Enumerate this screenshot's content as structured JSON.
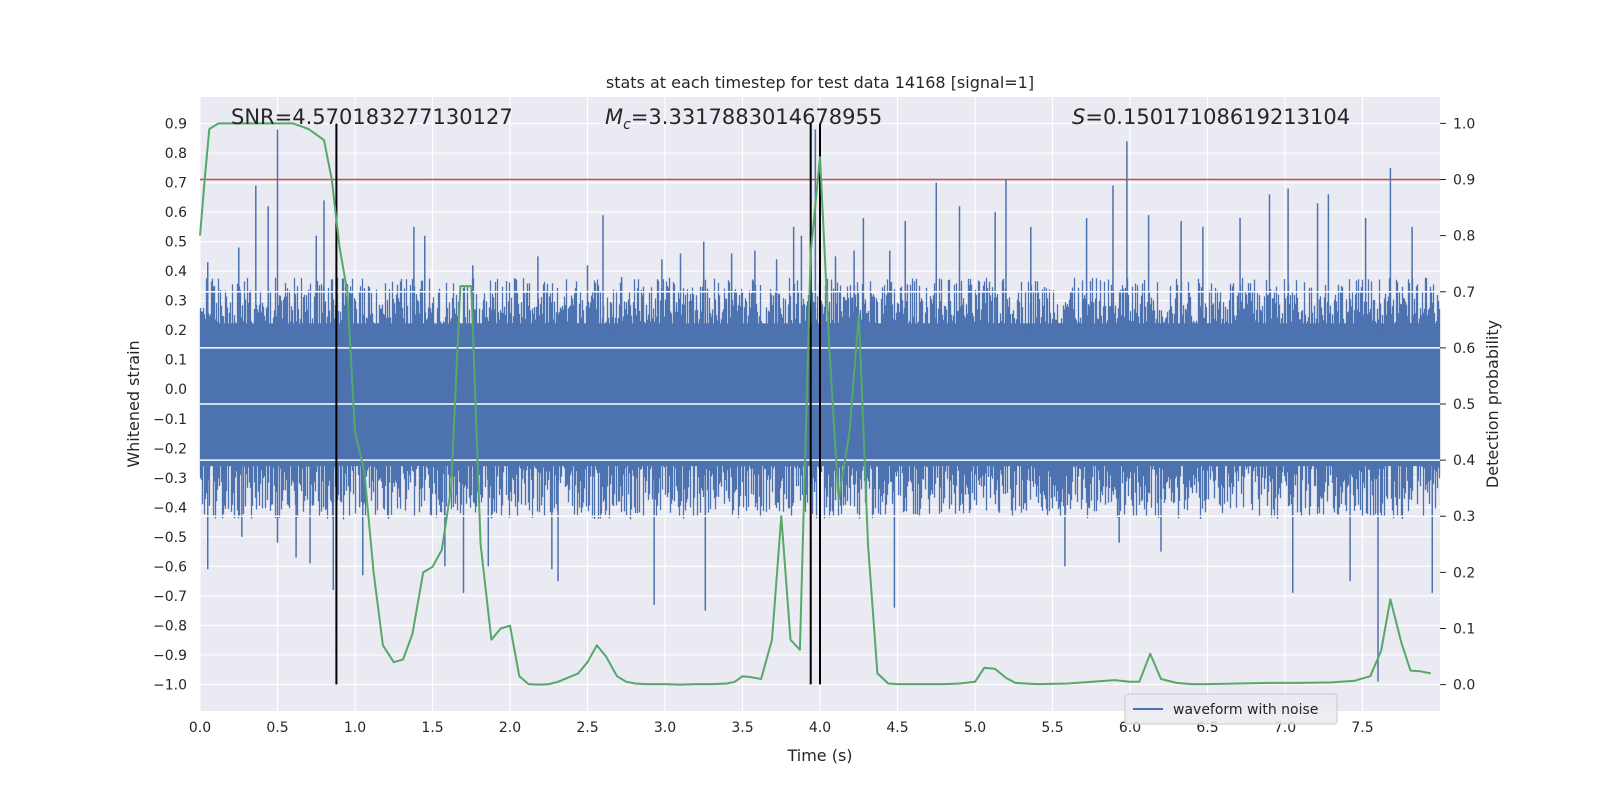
{
  "chart_data": {
    "type": "line",
    "title": "stats at each timestep for test data 14168 [signal=1]",
    "xlabel": "Time (s)",
    "ylabel_left": "Whitened strain",
    "ylabel_right": "Detection probability",
    "xlim": [
      0.0,
      8.0
    ],
    "ylim_left": [
      -1.09,
      0.99
    ],
    "ylim_right": [
      -0.047,
      1.047
    ],
    "x_ticks": [
      0.0,
      0.5,
      1.0,
      1.5,
      2.0,
      2.5,
      3.0,
      3.5,
      4.0,
      4.5,
      5.0,
      5.5,
      6.0,
      6.5,
      7.0,
      7.5
    ],
    "x_tick_labels": [
      "0.0",
      "0.5",
      "1.0",
      "1.5",
      "2.0",
      "2.5",
      "3.0",
      "3.5",
      "4.0",
      "4.5",
      "5.0",
      "5.5",
      "6.0",
      "6.5",
      "7.0",
      "7.5"
    ],
    "y_left_ticks": [
      -1.0,
      -0.9,
      -0.8,
      -0.7,
      -0.6,
      -0.5,
      -0.4,
      -0.3,
      -0.2,
      -0.1,
      0.0,
      0.1,
      0.2,
      0.3,
      0.4,
      0.5,
      0.6,
      0.7,
      0.8,
      0.9
    ],
    "y_left_tick_labels": [
      "−1.0",
      "−0.9",
      "−0.8",
      "−0.7",
      "−0.6",
      "−0.5",
      "−0.4",
      "−0.3",
      "−0.2",
      "−0.1",
      "0.0",
      "0.1",
      "0.2",
      "0.3",
      "0.4",
      "0.5",
      "0.6",
      "0.7",
      "0.8",
      "0.9"
    ],
    "y_right_ticks": [
      0.0,
      0.1,
      0.2,
      0.3,
      0.4,
      0.5,
      0.6,
      0.7,
      0.8,
      0.9,
      1.0
    ],
    "y_right_tick_labels": [
      "0.0",
      "0.1",
      "0.2",
      "0.3",
      "0.4",
      "0.5",
      "0.6",
      "0.7",
      "0.8",
      "0.9",
      "1.0"
    ],
    "annotations": {
      "snr": "SNR=4.570183277130127",
      "mc_symbol": "M",
      "mc_sub": "c",
      "mc_value": "=3.3317883014678955",
      "s_symbol": "S",
      "s_value": "=0.15017108619213104"
    },
    "legend": {
      "label": "waveform with noise",
      "location": "lower-right"
    },
    "threshold_line": {
      "axis": "right",
      "y": 0.9,
      "color": "#c44e52"
    },
    "vertical_lines": [
      {
        "x": 0.88,
        "color": "#000000"
      },
      {
        "x": 3.94,
        "color": "#000000"
      },
      {
        "x": 4.0,
        "color": "#000000"
      }
    ],
    "right_axis_gridlines": [
      0.3,
      0.4,
      0.5,
      0.6,
      0.7
    ],
    "waveform": {
      "name": "waveform with noise",
      "color": "#4c72b0",
      "band_lower": -0.42,
      "band_upper": 0.36,
      "spikes": [
        {
          "x": 0.05,
          "y": 0.43
        },
        {
          "x": 0.05,
          "y": -0.61
        },
        {
          "x": 0.25,
          "y": 0.48
        },
        {
          "x": 0.27,
          "y": -0.5
        },
        {
          "x": 0.36,
          "y": 0.69
        },
        {
          "x": 0.44,
          "y": 0.62
        },
        {
          "x": 0.5,
          "y": 0.88
        },
        {
          "x": 0.5,
          "y": -0.52
        },
        {
          "x": 0.62,
          "y": -0.57
        },
        {
          "x": 0.71,
          "y": -0.59
        },
        {
          "x": 0.75,
          "y": 0.52
        },
        {
          "x": 0.8,
          "y": 0.64
        },
        {
          "x": 0.86,
          "y": -0.68
        },
        {
          "x": 1.03,
          "y": -0.4
        },
        {
          "x": 1.05,
          "y": -0.63
        },
        {
          "x": 1.24,
          "y": -0.3
        },
        {
          "x": 1.38,
          "y": 0.55
        },
        {
          "x": 1.45,
          "y": 0.52
        },
        {
          "x": 1.58,
          "y": -0.6
        },
        {
          "x": 1.7,
          "y": -0.69
        },
        {
          "x": 1.76,
          "y": 0.42
        },
        {
          "x": 1.86,
          "y": -0.6
        },
        {
          "x": 2.18,
          "y": 0.45
        },
        {
          "x": 2.27,
          "y": -0.61
        },
        {
          "x": 2.31,
          "y": -0.65
        },
        {
          "x": 2.5,
          "y": 0.42
        },
        {
          "x": 2.6,
          "y": 0.59
        },
        {
          "x": 2.72,
          "y": 0.38
        },
        {
          "x": 2.93,
          "y": -0.73
        },
        {
          "x": 2.98,
          "y": 0.44
        },
        {
          "x": 3.1,
          "y": 0.46
        },
        {
          "x": 3.25,
          "y": 0.5
        },
        {
          "x": 3.26,
          "y": -0.75
        },
        {
          "x": 3.43,
          "y": 0.46
        },
        {
          "x": 3.58,
          "y": 0.47
        },
        {
          "x": 3.72,
          "y": 0.44
        },
        {
          "x": 3.83,
          "y": 0.55
        },
        {
          "x": 3.88,
          "y": 0.52
        },
        {
          "x": 3.97,
          "y": 0.88
        },
        {
          "x": 4.1,
          "y": 0.45
        },
        {
          "x": 4.22,
          "y": 0.47
        },
        {
          "x": 4.28,
          "y": 0.58
        },
        {
          "x": 4.45,
          "y": 0.47
        },
        {
          "x": 4.48,
          "y": -0.74
        },
        {
          "x": 4.55,
          "y": 0.57
        },
        {
          "x": 4.75,
          "y": 0.7
        },
        {
          "x": 4.9,
          "y": 0.62
        },
        {
          "x": 5.13,
          "y": 0.6
        },
        {
          "x": 5.2,
          "y": 0.71
        },
        {
          "x": 5.36,
          "y": 0.55
        },
        {
          "x": 5.58,
          "y": -0.6
        },
        {
          "x": 5.72,
          "y": 0.58
        },
        {
          "x": 5.89,
          "y": 0.69
        },
        {
          "x": 5.93,
          "y": -0.52
        },
        {
          "x": 5.98,
          "y": 0.84
        },
        {
          "x": 6.12,
          "y": 0.59
        },
        {
          "x": 6.2,
          "y": -0.55
        },
        {
          "x": 6.33,
          "y": 0.57
        },
        {
          "x": 6.47,
          "y": 0.55
        },
        {
          "x": 6.71,
          "y": 0.58
        },
        {
          "x": 6.9,
          "y": 0.66
        },
        {
          "x": 7.02,
          "y": 0.68
        },
        {
          "x": 7.05,
          "y": -0.69
        },
        {
          "x": 7.21,
          "y": 0.63
        },
        {
          "x": 7.28,
          "y": 0.66
        },
        {
          "x": 7.42,
          "y": -0.65
        },
        {
          "x": 7.52,
          "y": 0.58
        },
        {
          "x": 7.6,
          "y": -0.99
        },
        {
          "x": 7.68,
          "y": 0.75
        },
        {
          "x": 7.82,
          "y": 0.55
        },
        {
          "x": 7.95,
          "y": -0.69
        }
      ]
    },
    "detection_probability": {
      "name": "detection probability",
      "color": "#55a868",
      "x": [
        0.0,
        0.03,
        0.06,
        0.12,
        0.2,
        0.3,
        0.4,
        0.5,
        0.6,
        0.65,
        0.7,
        0.75,
        0.8,
        0.85,
        0.9,
        0.95,
        1.0,
        1.06,
        1.12,
        1.18,
        1.25,
        1.31,
        1.37,
        1.44,
        1.5,
        1.56,
        1.62,
        1.68,
        1.75,
        1.81,
        1.88,
        1.94,
        2.0,
        2.06,
        2.12,
        2.19,
        2.25,
        2.31,
        2.37,
        2.44,
        2.5,
        2.56,
        2.62,
        2.69,
        2.75,
        2.81,
        2.87,
        3.0,
        3.1,
        3.2,
        3.3,
        3.4,
        3.45,
        3.5,
        3.56,
        3.62,
        3.69,
        3.75,
        3.81,
        3.87,
        3.94,
        4.0,
        4.06,
        4.12,
        4.19,
        4.25,
        4.31,
        4.37,
        4.44,
        4.5,
        4.6,
        4.7,
        4.8,
        4.9,
        5.0,
        5.06,
        5.13,
        5.2,
        5.26,
        5.4,
        5.6,
        5.8,
        5.9,
        6.0,
        6.06,
        6.13,
        6.2,
        6.3,
        6.4,
        6.5,
        6.7,
        6.9,
        7.1,
        7.3,
        7.45,
        7.55,
        7.62,
        7.68,
        7.75,
        7.81,
        7.87,
        7.94
      ],
      "y": [
        0.8,
        0.9,
        0.99,
        1.0,
        1.0,
        1.0,
        1.0,
        1.0,
        1.0,
        0.995,
        0.99,
        0.98,
        0.97,
        0.9,
        0.78,
        0.7,
        0.45,
        0.38,
        0.2,
        0.07,
        0.04,
        0.045,
        0.09,
        0.2,
        0.21,
        0.24,
        0.35,
        0.71,
        0.71,
        0.25,
        0.08,
        0.1,
        0.105,
        0.015,
        0.001,
        0.0,
        0.001,
        0.005,
        0.012,
        0.02,
        0.04,
        0.07,
        0.05,
        0.015,
        0.005,
        0.002,
        0.001,
        0.001,
        0.0,
        0.001,
        0.001,
        0.002,
        0.005,
        0.015,
        0.013,
        0.01,
        0.08,
        0.3,
        0.08,
        0.062,
        0.77,
        0.94,
        0.6,
        0.33,
        0.45,
        0.66,
        0.25,
        0.02,
        0.002,
        0.001,
        0.001,
        0.001,
        0.001,
        0.002,
        0.005,
        0.03,
        0.028,
        0.012,
        0.003,
        0.001,
        0.002,
        0.006,
        0.008,
        0.005,
        0.005,
        0.055,
        0.01,
        0.003,
        0.001,
        0.001,
        0.002,
        0.003,
        0.003,
        0.004,
        0.007,
        0.015,
        0.06,
        0.152,
        0.075,
        0.025,
        0.024,
        0.02
      ]
    }
  }
}
